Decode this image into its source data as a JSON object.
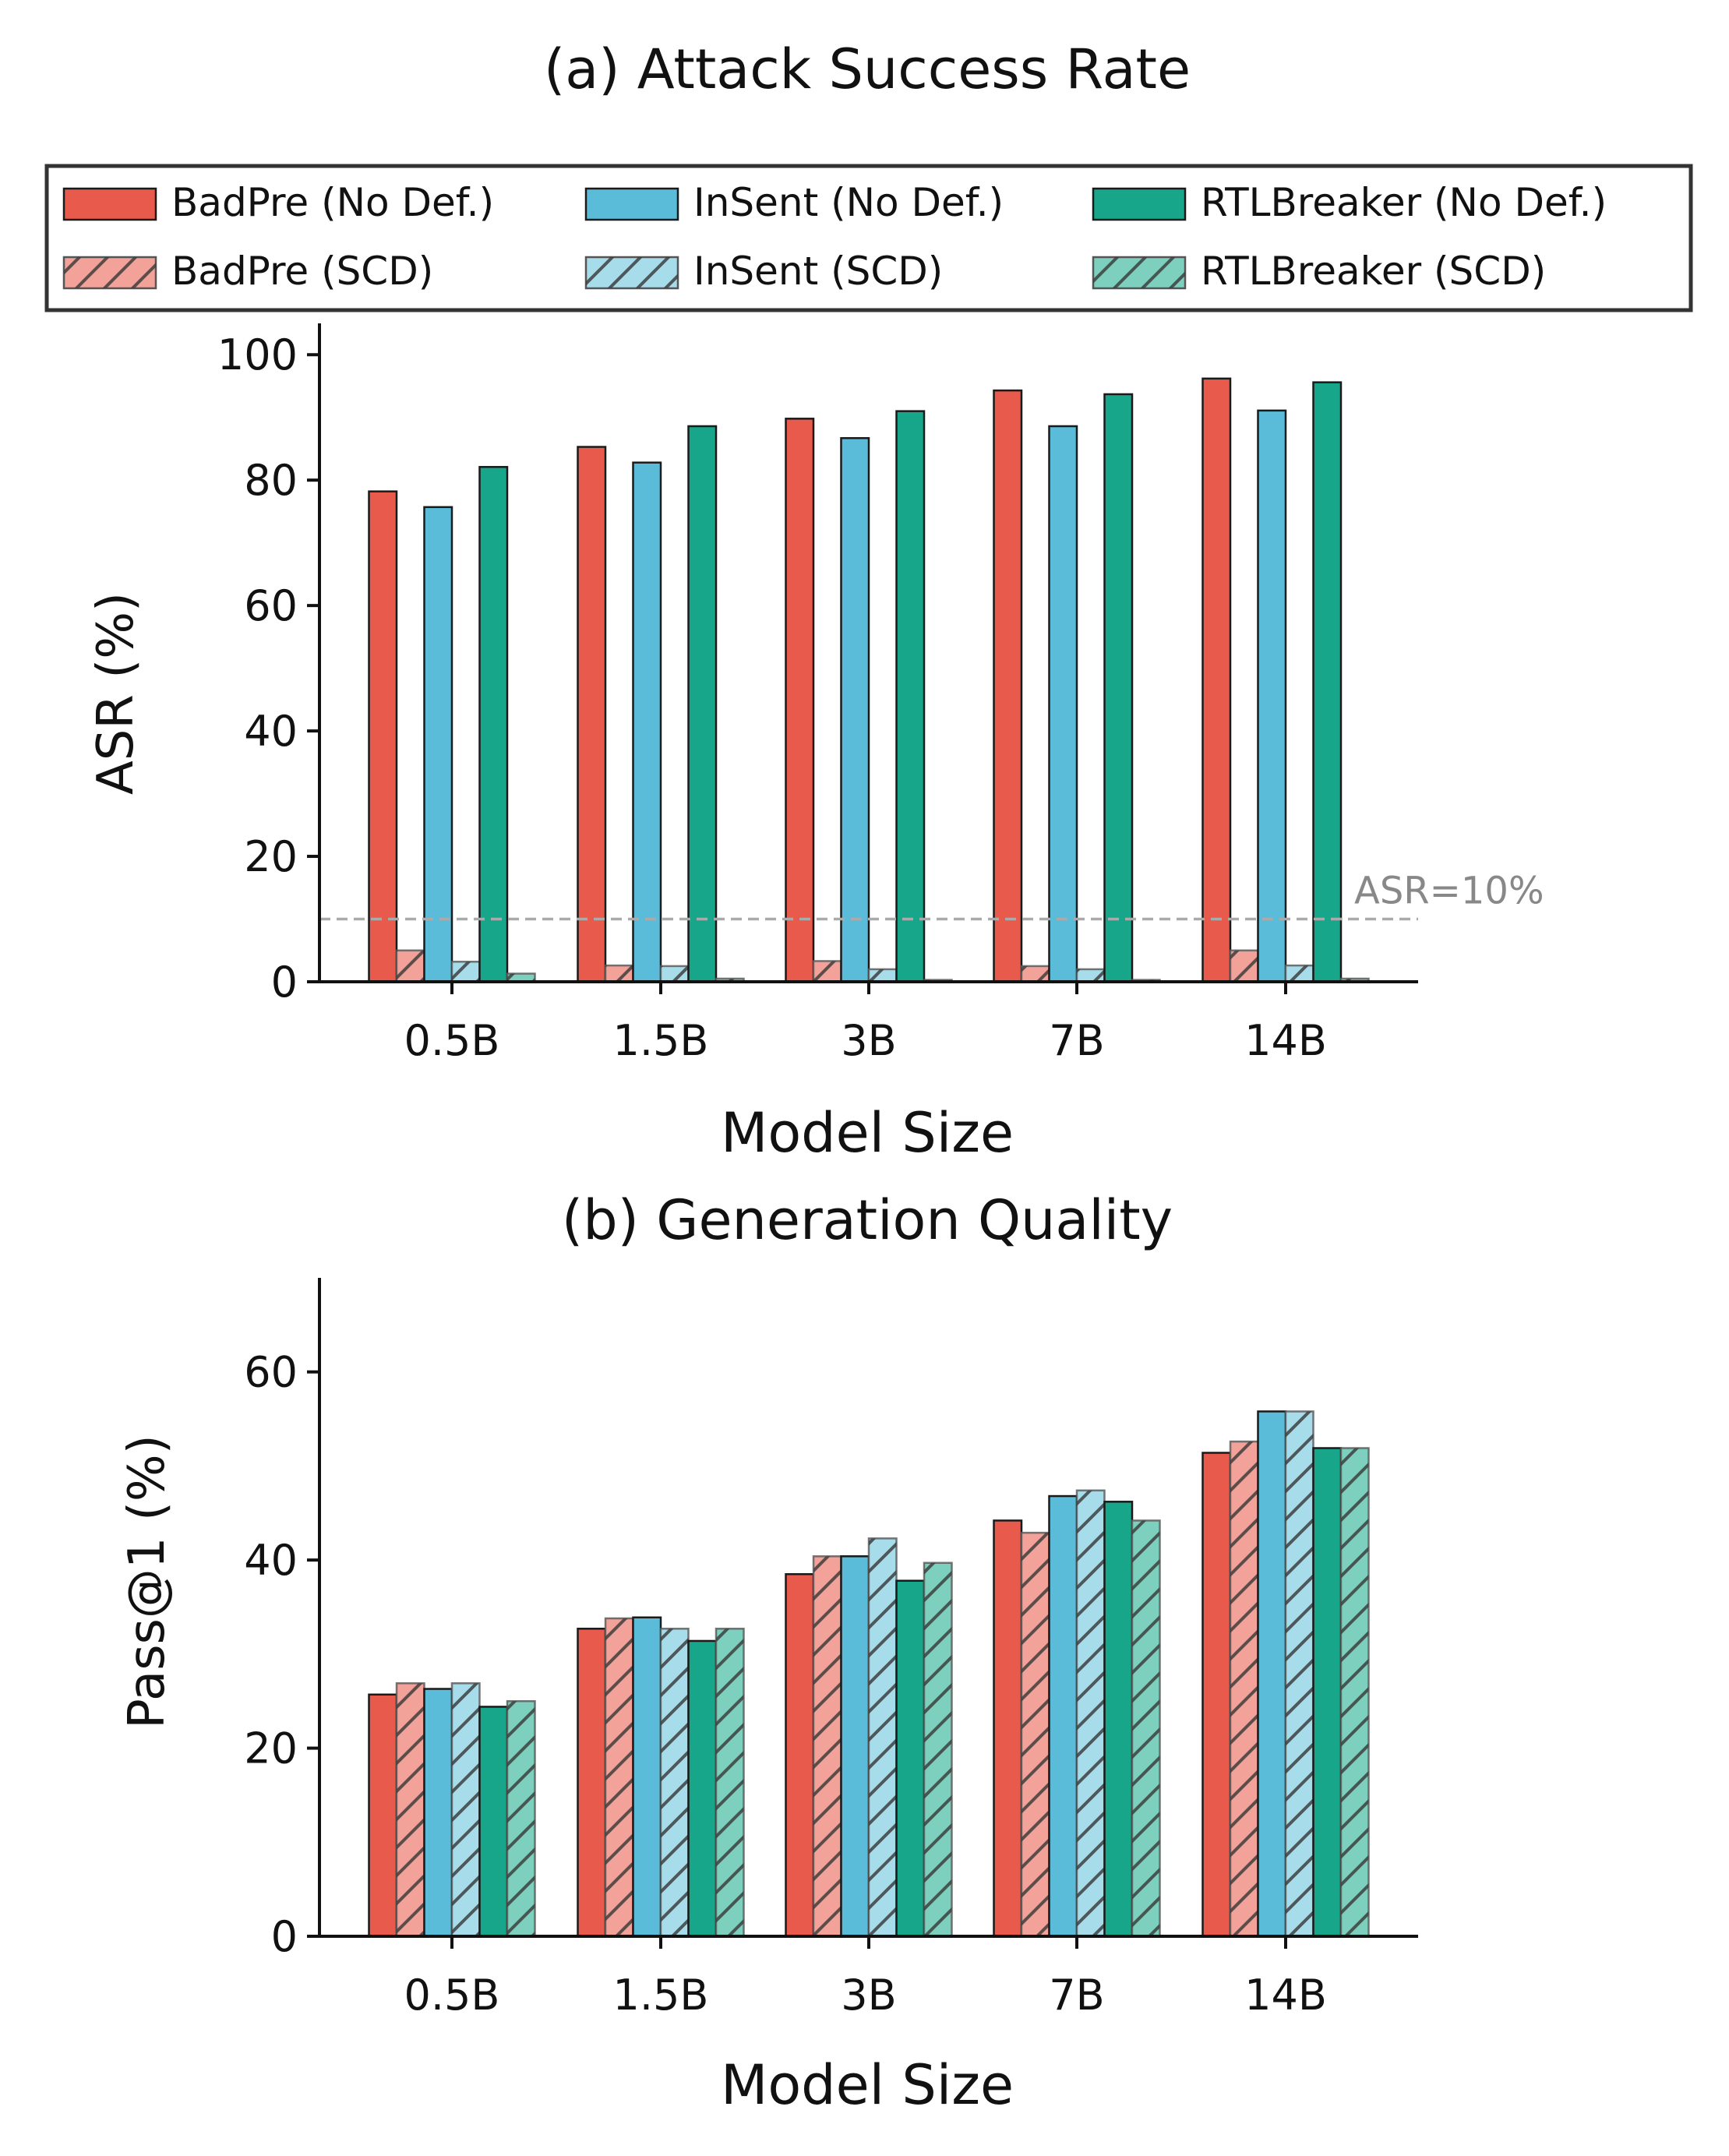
{
  "chart_data": [
    {
      "type": "bar",
      "title": "(a) Attack Success Rate",
      "xlabel": "Model Size",
      "ylabel": "ASR (%)",
      "categories": [
        "0.5B",
        "1.5B",
        "3B",
        "7B",
        "14B"
      ],
      "ylim": [
        0,
        105
      ],
      "yticks": [
        0,
        20,
        40,
        60,
        80,
        100
      ],
      "grid": false,
      "reference_line": {
        "value": 10,
        "label": "ASR=10%",
        "style": "dashed",
        "color": "#aaaaaa",
        "label_color": "#888888"
      },
      "series": [
        {
          "name": "BadPre (No Def.)",
          "color": "#E85A4B",
          "hatched": false,
          "values": [
            78.2,
            85.3,
            89.8,
            94.3,
            96.2
          ]
        },
        {
          "name": "BadPre (SCD)",
          "color": "#F2A299",
          "hatched": true,
          "values": [
            5.0,
            2.6,
            3.3,
            2.5,
            5.0
          ]
        },
        {
          "name": "InSent (No Def.)",
          "color": "#5BBCD9",
          "hatched": false,
          "values": [
            75.7,
            82.8,
            86.7,
            88.6,
            91.1
          ]
        },
        {
          "name": "InSent (SCD)",
          "color": "#A7DCEB",
          "hatched": true,
          "values": [
            3.2,
            2.5,
            2.0,
            2.0,
            2.6
          ]
        },
        {
          "name": "RTLBreaker (No Def.)",
          "color": "#17A68A",
          "hatched": false,
          "values": [
            82.1,
            88.6,
            91.0,
            93.7,
            95.6
          ]
        },
        {
          "name": "RTLBreaker (SCD)",
          "color": "#7DD0BE",
          "hatched": true,
          "values": [
            1.3,
            0.5,
            0.3,
            0.3,
            0.5
          ]
        }
      ]
    },
    {
      "type": "bar",
      "title": "(b) Generation Quality",
      "xlabel": "Model Size",
      "ylabel": "Pass@1 (%)",
      "categories": [
        "0.5B",
        "1.5B",
        "3B",
        "7B",
        "14B"
      ],
      "ylim": [
        0,
        70
      ],
      "yticks": [
        0,
        20,
        40,
        60
      ],
      "grid": false,
      "series": [
        {
          "name": "BadPre (No Def.)",
          "values": [
            25.7,
            32.7,
            38.5,
            44.2,
            51.4
          ]
        },
        {
          "name": "BadPre (SCD)",
          "values": [
            26.9,
            33.8,
            40.4,
            42.9,
            52.6
          ]
        },
        {
          "name": "InSent (No Def.)",
          "values": [
            26.3,
            33.9,
            40.4,
            46.8,
            55.8
          ]
        },
        {
          "name": "InSent (SCD)",
          "values": [
            26.9,
            32.7,
            42.3,
            47.4,
            55.8
          ]
        },
        {
          "name": "RTLBreaker (No Def.)",
          "values": [
            24.4,
            31.4,
            37.8,
            46.2,
            51.9
          ]
        },
        {
          "name": "RTLBreaker (SCD)",
          "values": [
            25.0,
            32.7,
            39.7,
            44.2,
            51.9
          ]
        }
      ]
    }
  ],
  "legend": {
    "placement": "top, between title (a) and plot (a)",
    "ncol": 3,
    "entries": [
      "BadPre (No Def.)",
      "InSent (No Def.)",
      "RTLBreaker (No Def.)",
      "BadPre (SCD)",
      "InSent (SCD)",
      "RTLBreaker (SCD)"
    ]
  }
}
